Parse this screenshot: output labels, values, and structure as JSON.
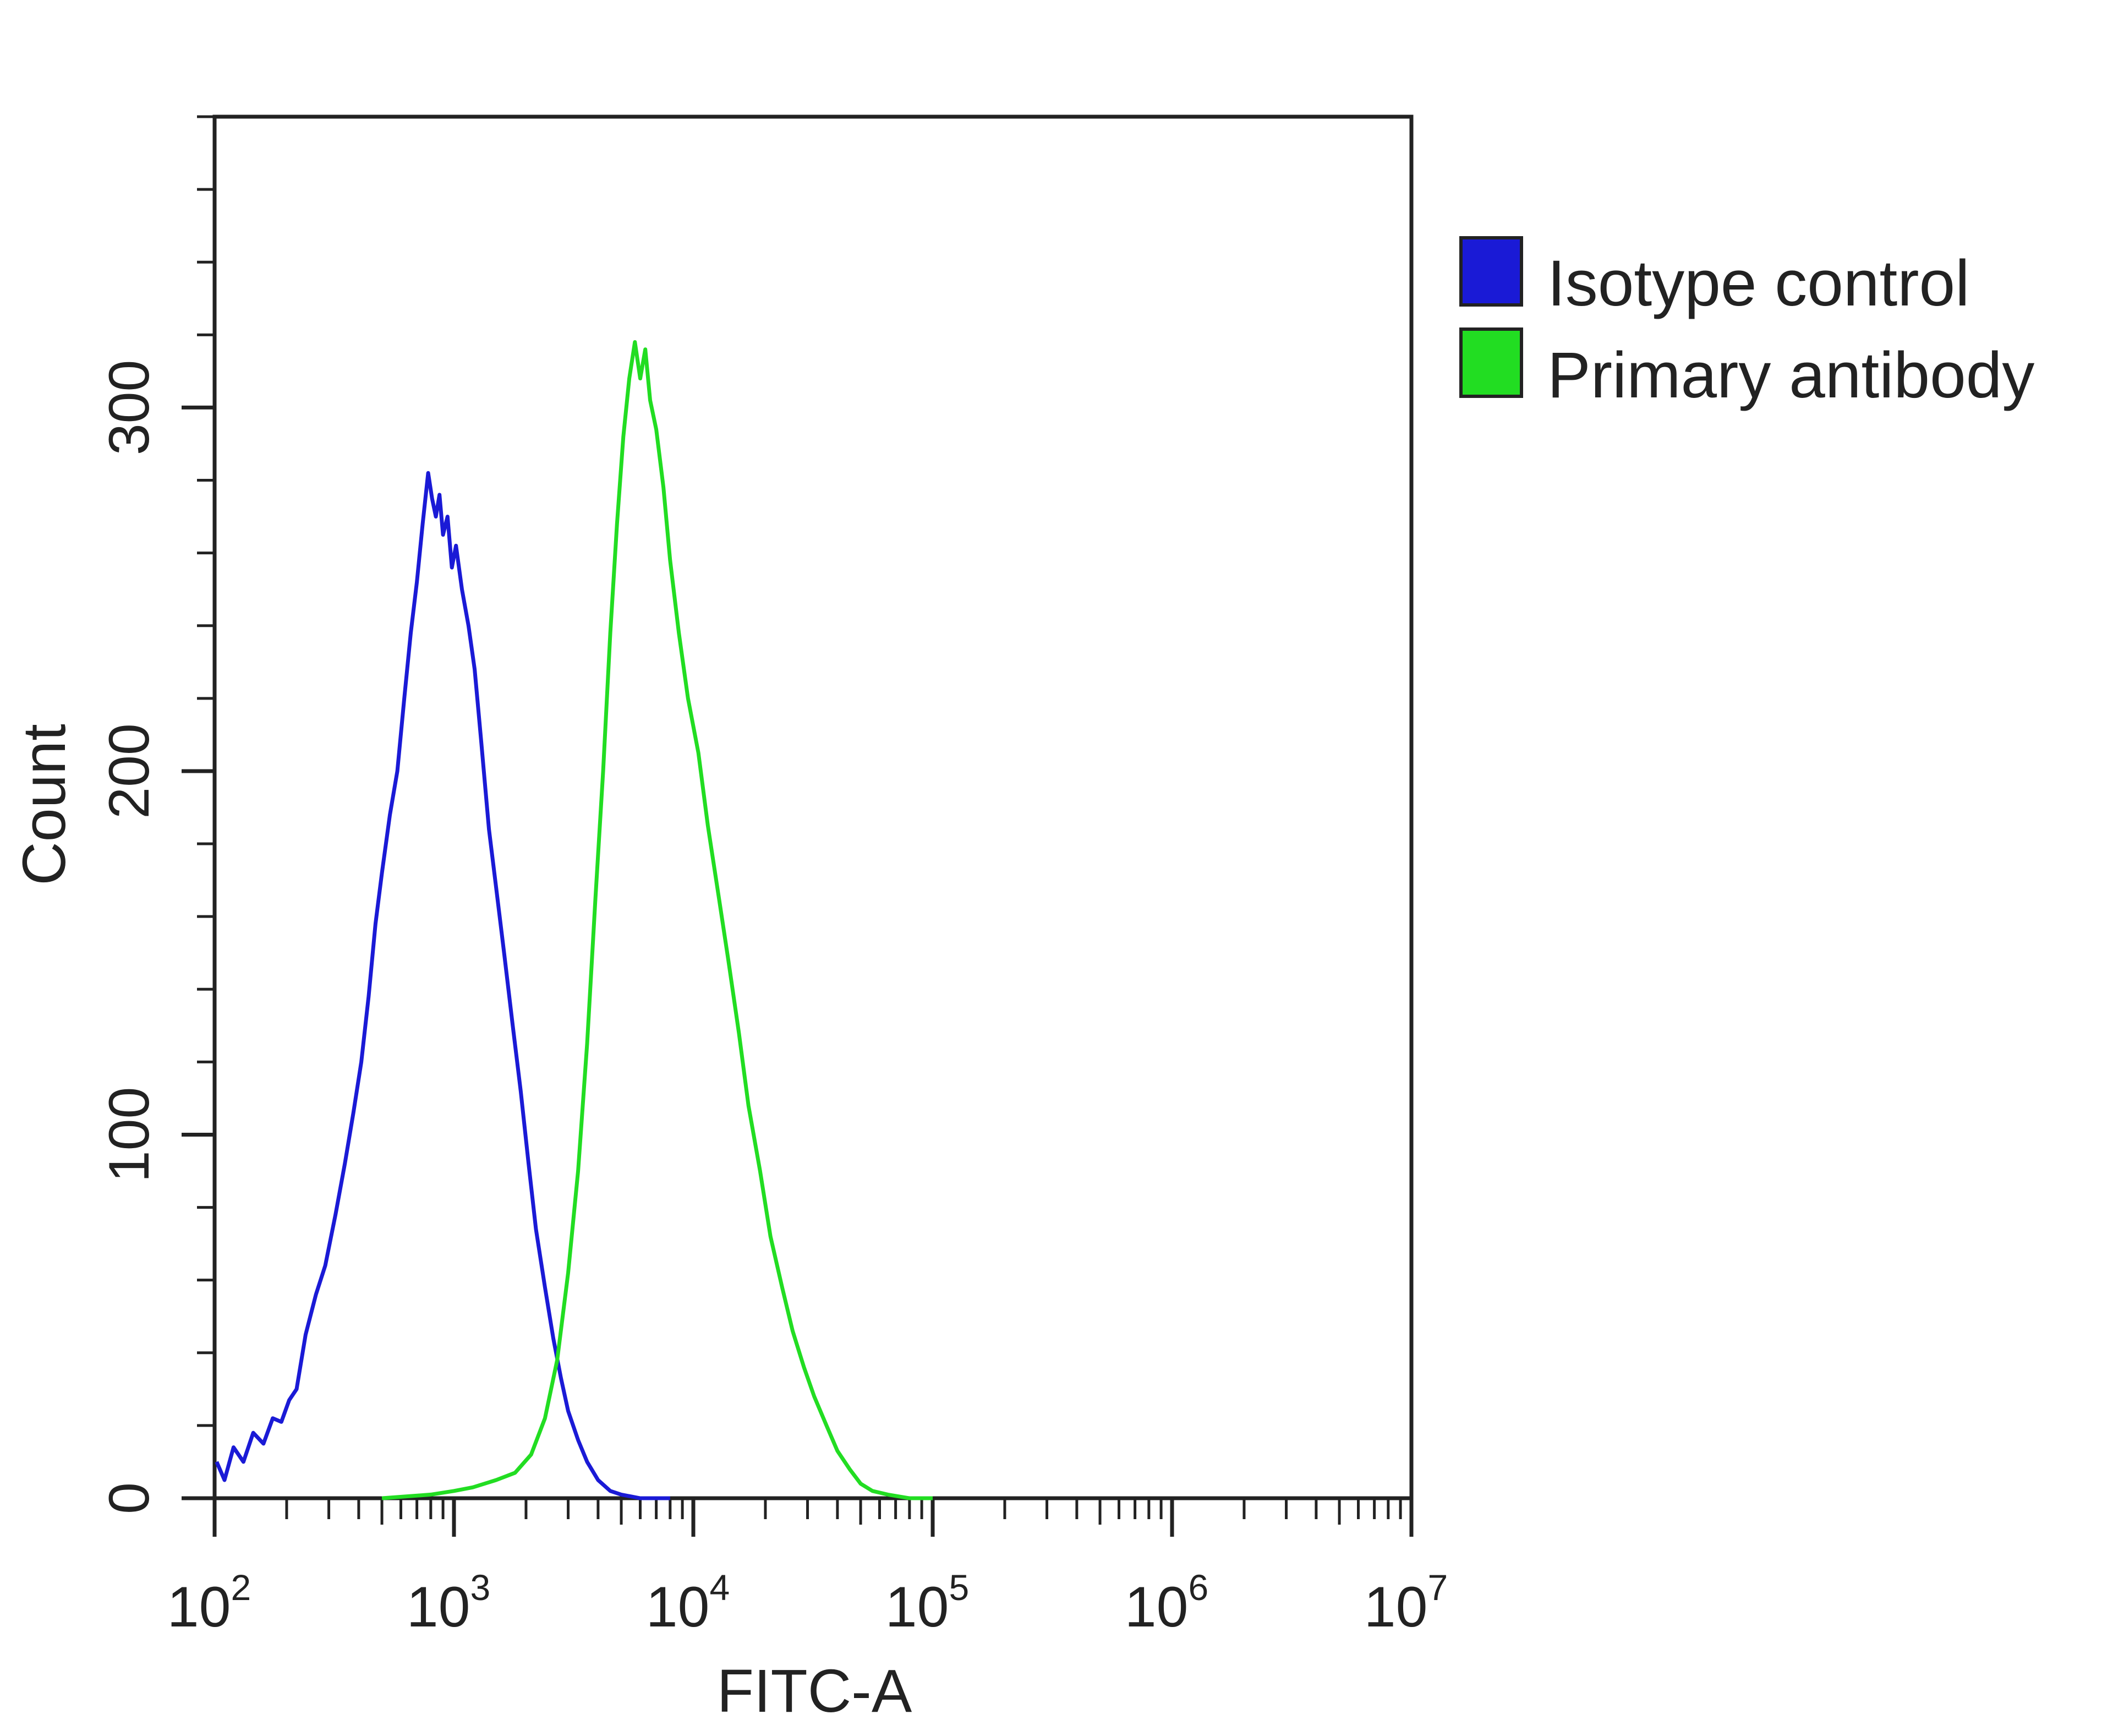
{
  "chart_data": {
    "type": "line",
    "title": "",
    "xlabel": "FITC-A",
    "ylabel": "Count",
    "x_scale": "log",
    "xlim": [
      100,
      10000000
    ],
    "ylim": [
      0,
      380
    ],
    "grid": false,
    "legend_position": "right",
    "x_tick_labels": [
      {
        "base": "10",
        "exp": "2",
        "value": 100
      },
      {
        "base": "10",
        "exp": "3",
        "value": 1000
      },
      {
        "base": "10",
        "exp": "4",
        "value": 10000
      },
      {
        "base": "10",
        "exp": "5",
        "value": 100000
      },
      {
        "base": "10",
        "exp": "6",
        "value": 1000000
      },
      {
        "base": "10",
        "exp": "7",
        "value": 10000000
      }
    ],
    "y_ticks": [
      0,
      100,
      200,
      300
    ],
    "y_tick_labels": [
      "0",
      "100",
      "200",
      "300"
    ],
    "series": [
      {
        "name": "Isotype control",
        "color": "#1a1ad6",
        "points": [
          [
            102,
            10
          ],
          [
            110,
            5
          ],
          [
            120,
            14
          ],
          [
            132,
            10
          ],
          [
            145,
            18
          ],
          [
            160,
            15
          ],
          [
            175,
            22
          ],
          [
            190,
            21
          ],
          [
            205,
            27
          ],
          [
            220,
            30
          ],
          [
            240,
            45
          ],
          [
            265,
            56
          ],
          [
            290,
            64
          ],
          [
            320,
            78
          ],
          [
            350,
            92
          ],
          [
            380,
            106
          ],
          [
            410,
            120
          ],
          [
            440,
            138
          ],
          [
            470,
            158
          ],
          [
            500,
            172
          ],
          [
            540,
            188
          ],
          [
            580,
            200
          ],
          [
            620,
            220
          ],
          [
            660,
            238
          ],
          [
            700,
            252
          ],
          [
            740,
            268
          ],
          [
            780,
            282
          ],
          [
            810,
            275
          ],
          [
            840,
            270
          ],
          [
            870,
            276
          ],
          [
            900,
            265
          ],
          [
            940,
            270
          ],
          [
            980,
            256
          ],
          [
            1020,
            262
          ],
          [
            1080,
            250
          ],
          [
            1150,
            240
          ],
          [
            1220,
            228
          ],
          [
            1300,
            208
          ],
          [
            1400,
            184
          ],
          [
            1500,
            168
          ],
          [
            1620,
            150
          ],
          [
            1760,
            130
          ],
          [
            1900,
            112
          ],
          [
            2050,
            92
          ],
          [
            2200,
            74
          ],
          [
            2400,
            58
          ],
          [
            2600,
            44
          ],
          [
            2800,
            33
          ],
          [
            3000,
            24
          ],
          [
            3300,
            16
          ],
          [
            3600,
            10
          ],
          [
            4000,
            5
          ],
          [
            4500,
            2
          ],
          [
            5000,
            1
          ],
          [
            6000,
            0
          ],
          [
            8000,
            0
          ]
        ]
      },
      {
        "name": "Primary antibody",
        "color": "#22dd22",
        "points": [
          [
            500,
            0
          ],
          [
            800,
            1
          ],
          [
            1000,
            2
          ],
          [
            1200,
            3
          ],
          [
            1500,
            5
          ],
          [
            1800,
            7
          ],
          [
            2100,
            12
          ],
          [
            2400,
            22
          ],
          [
            2700,
            38
          ],
          [
            3000,
            62
          ],
          [
            3300,
            90
          ],
          [
            3600,
            125
          ],
          [
            3900,
            165
          ],
          [
            4200,
            200
          ],
          [
            4500,
            238
          ],
          [
            4800,
            268
          ],
          [
            5100,
            292
          ],
          [
            5400,
            308
          ],
          [
            5700,
            318
          ],
          [
            6000,
            308
          ],
          [
            6300,
            316
          ],
          [
            6600,
            302
          ],
          [
            7000,
            294
          ],
          [
            7500,
            278
          ],
          [
            8000,
            258
          ],
          [
            8700,
            238
          ],
          [
            9500,
            220
          ],
          [
            10500,
            205
          ],
          [
            11500,
            185
          ],
          [
            12800,
            165
          ],
          [
            14000,
            148
          ],
          [
            15500,
            128
          ],
          [
            17000,
            108
          ],
          [
            19000,
            90
          ],
          [
            21000,
            72
          ],
          [
            23500,
            58
          ],
          [
            26000,
            46
          ],
          [
            29000,
            36
          ],
          [
            32000,
            28
          ],
          [
            36000,
            20
          ],
          [
            40000,
            13
          ],
          [
            45000,
            8
          ],
          [
            50000,
            4
          ],
          [
            56000,
            2
          ],
          [
            65000,
            1
          ],
          [
            80000,
            0
          ],
          [
            100000,
            0
          ]
        ]
      }
    ]
  }
}
